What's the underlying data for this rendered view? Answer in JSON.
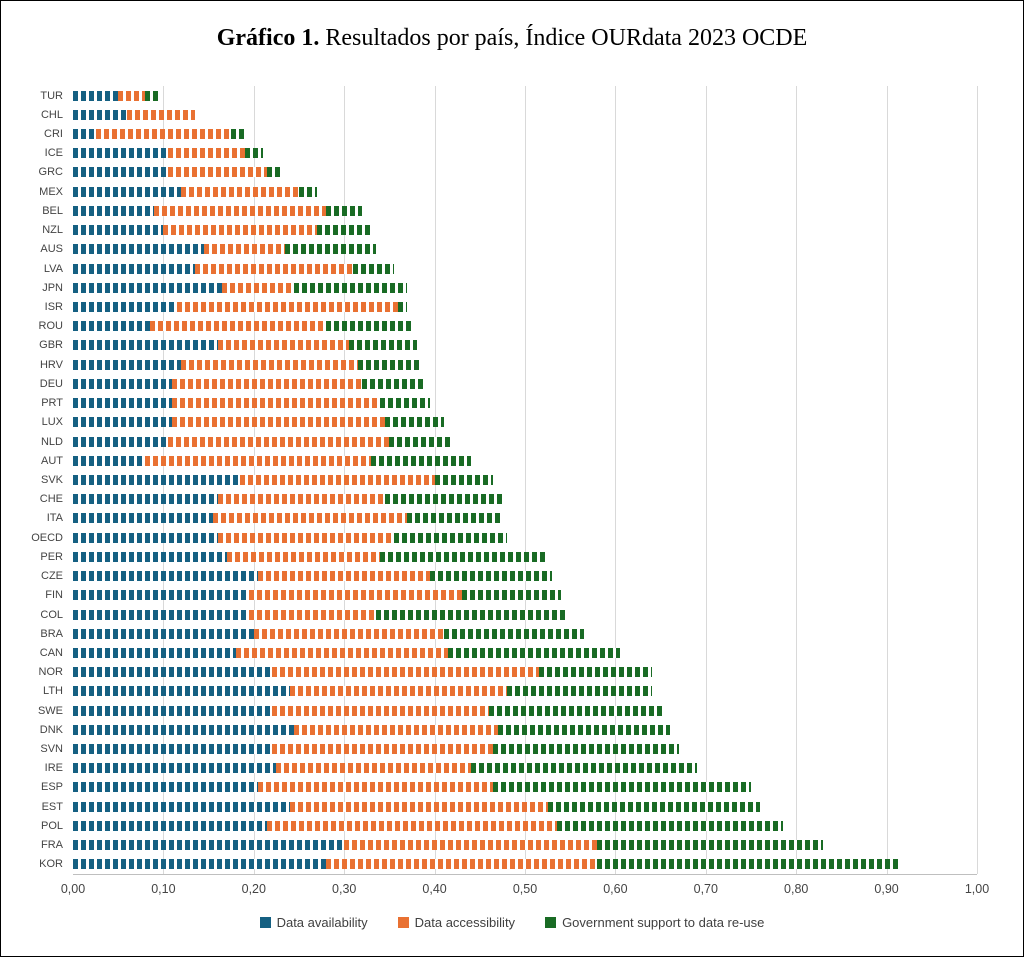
{
  "title": {
    "bold": "Gráfico 1.",
    "rest": " Resultados por país,  Índice OURdata 2023 OCDE"
  },
  "chart_data": {
    "type": "bar",
    "orientation": "horizontal",
    "stacked": true,
    "grid": "vertical",
    "legend_position": "bottom",
    "xlim": [
      0,
      1
    ],
    "xticks": [
      {
        "value": 0.0,
        "label": "0,00"
      },
      {
        "value": 0.1,
        "label": "0,10"
      },
      {
        "value": 0.2,
        "label": "0,20"
      },
      {
        "value": 0.3,
        "label": "0,30"
      },
      {
        "value": 0.4,
        "label": "0,40"
      },
      {
        "value": 0.5,
        "label": "0,50"
      },
      {
        "value": 0.6,
        "label": "0,60"
      },
      {
        "value": 0.7,
        "label": "0,70"
      },
      {
        "value": 0.8,
        "label": "0,80"
      },
      {
        "value": 0.9,
        "label": "0,90"
      },
      {
        "value": 1.0,
        "label": "1,00"
      }
    ],
    "categories": [
      "TUR",
      "CHL",
      "CRI",
      "ICE",
      "GRC",
      "MEX",
      "BEL",
      "NZL",
      "AUS",
      "LVA",
      "JPN",
      "ISR",
      "ROU",
      "GBR",
      "HRV",
      "DEU",
      "PRT",
      "LUX",
      "NLD",
      "AUT",
      "SVK",
      "CHE",
      "ITA",
      "OECD",
      "PER",
      "CZE",
      "FIN",
      "COL",
      "BRA",
      "CAN",
      "NOR",
      "LTH",
      "SWE",
      "DNK",
      "SVN",
      "IRE",
      "ESP",
      "EST",
      "POL",
      "FRA",
      "KOR"
    ],
    "series": [
      {
        "name": "Data availability",
        "color": "#156082",
        "values": [
          0.05,
          0.06,
          0.025,
          0.105,
          0.105,
          0.12,
          0.09,
          0.1,
          0.145,
          0.135,
          0.165,
          0.115,
          0.085,
          0.16,
          0.12,
          0.11,
          0.11,
          0.11,
          0.105,
          0.08,
          0.185,
          0.16,
          0.155,
          0.16,
          0.17,
          0.205,
          0.195,
          0.195,
          0.2,
          0.18,
          0.22,
          0.24,
          0.22,
          0.245,
          0.22,
          0.225,
          0.205,
          0.24,
          0.215,
          0.3,
          0.28
        ]
      },
      {
        "name": "Data accessibility",
        "color": "#E97132",
        "values": [
          0.03,
          0.075,
          0.15,
          0.085,
          0.11,
          0.13,
          0.19,
          0.17,
          0.09,
          0.175,
          0.08,
          0.245,
          0.195,
          0.145,
          0.195,
          0.21,
          0.23,
          0.235,
          0.245,
          0.25,
          0.215,
          0.185,
          0.215,
          0.195,
          0.17,
          0.19,
          0.235,
          0.14,
          0.21,
          0.235,
          0.295,
          0.24,
          0.24,
          0.225,
          0.245,
          0.215,
          0.26,
          0.285,
          0.32,
          0.28,
          0.3
        ]
      },
      {
        "name": "Government support to data re-use",
        "color": "#196B24",
        "values": [
          0.015,
          0.0,
          0.015,
          0.02,
          0.015,
          0.02,
          0.04,
          0.06,
          0.1,
          0.045,
          0.125,
          0.01,
          0.095,
          0.075,
          0.07,
          0.07,
          0.055,
          0.065,
          0.07,
          0.11,
          0.065,
          0.13,
          0.105,
          0.125,
          0.185,
          0.135,
          0.11,
          0.21,
          0.155,
          0.19,
          0.125,
          0.16,
          0.195,
          0.19,
          0.205,
          0.25,
          0.285,
          0.235,
          0.25,
          0.25,
          0.335
        ]
      }
    ]
  }
}
